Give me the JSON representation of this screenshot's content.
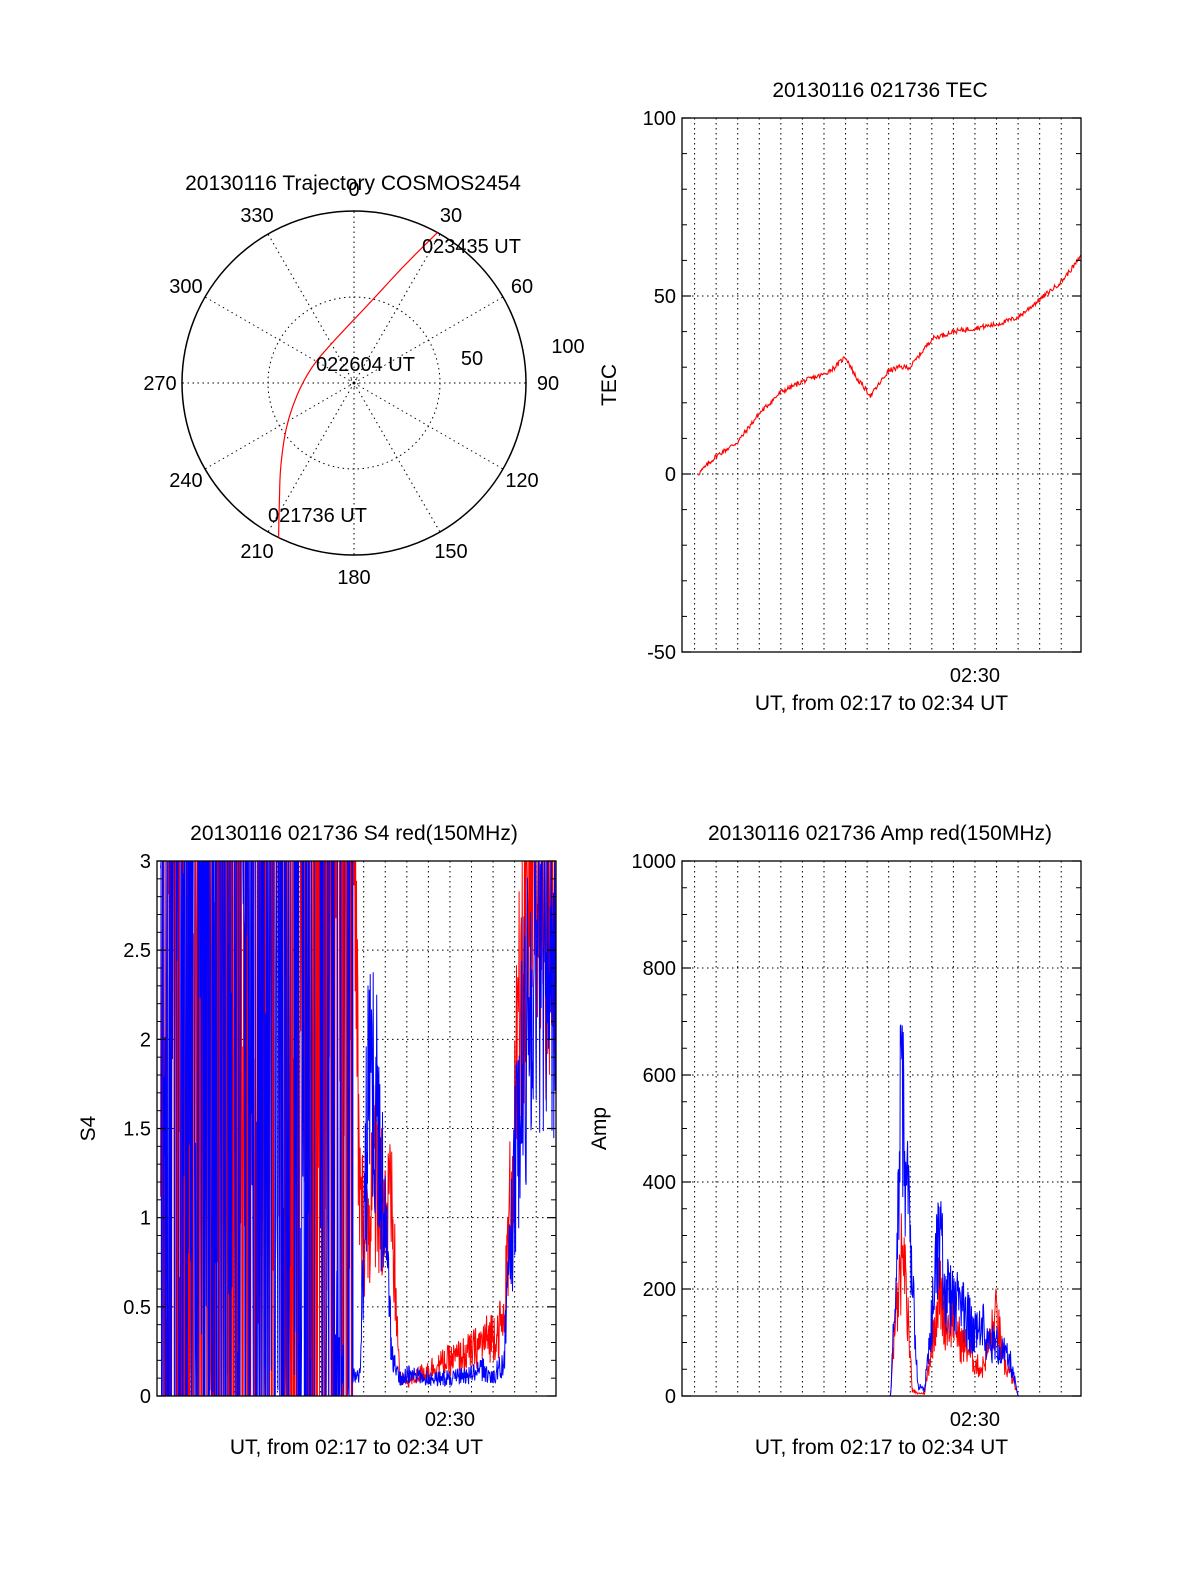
{
  "figure": {
    "polar_title": "20130116 Trajectory COSMOS2454",
    "tec_title": "20130116 021736 TEC",
    "s4_title": "20130116 021736 S4 red(150MHz)",
    "amp_title": "20130116 021736 Amp red(150MHz)"
  },
  "colors": {
    "red": "#ff0000",
    "blue": "#0000ff",
    "axis": "#000000"
  },
  "chart_data": [
    {
      "type": "scatter",
      "subtype": "polar-trajectory",
      "title": "20130116 Trajectory COSMOS2454",
      "azimuth_labels": [
        "0",
        "30",
        "60",
        "90",
        "120",
        "150",
        "180",
        "210",
        "240",
        "270",
        "300",
        "330"
      ],
      "radius_labels": [
        "50",
        "100"
      ],
      "annotations": [
        "023435 UT",
        "022604 UT",
        "021736 UT"
      ],
      "series": [
        {
          "color": "#ff0000",
          "points": [
            {
              "azimuth": 206,
              "zenith": 100
            },
            {
              "azimuth": 212,
              "zenith": 82
            },
            {
              "azimuth": 222,
              "zenith": 64
            },
            {
              "azimuth": 242,
              "zenith": 44
            },
            {
              "azimuth": 284,
              "zenith": 28
            },
            {
              "azimuth": 338,
              "zenith": 28
            },
            {
              "azimuth": 13,
              "zenith": 50
            },
            {
              "azimuth": 23,
              "zenith": 74
            },
            {
              "azimuth": 29,
              "zenith": 100
            }
          ]
        }
      ],
      "grid": true
    },
    {
      "type": "line",
      "title": "20130116 021736 TEC",
      "xlabel": "UT, from 02:17 to 02:34 UT",
      "ylabel": "TEC",
      "x_tick_labels": [
        "02:30"
      ],
      "y_tick_labels": [
        "100",
        "50",
        "0",
        "-50"
      ],
      "ylim": [
        -50,
        100
      ],
      "xlim": [
        "02:16:25",
        "02:34:55"
      ],
      "grid": true,
      "series": [
        {
          "color": "#ff0000",
          "x": [
            "02:17:10",
            "02:18:00",
            "02:19:00",
            "02:20:00",
            "02:21:00",
            "02:22:00",
            "02:23:00",
            "02:23:30",
            "02:24:00",
            "02:24:30",
            "02:25:10",
            "02:26:00",
            "02:26:30",
            "02:27:00",
            "02:28:00",
            "02:29:00",
            "02:30:00",
            "02:31:00",
            "02:32:00",
            "02:33:00",
            "02:34:00",
            "02:34:55"
          ],
          "values": [
            0,
            5,
            9,
            17,
            23,
            26,
            28,
            30,
            33,
            27,
            22,
            29,
            30,
            30,
            38,
            40,
            41,
            42,
            44,
            49,
            54,
            61
          ]
        }
      ]
    },
    {
      "type": "line",
      "title": "20130116 021736 S4 red(150MHz)",
      "xlabel": "UT, from 02:17 to 02:34 UT",
      "ylabel": "S4",
      "x_tick_labels": [
        "02:30"
      ],
      "y_tick_labels": [
        "0",
        "0.5",
        "1",
        "1.5",
        "2",
        "2.5",
        "3"
      ],
      "ylim": [
        0,
        3
      ],
      "xlim": [
        "02:16:25",
        "02:34:55"
      ],
      "grid": true,
      "series": [
        {
          "color": "#ff0000",
          "x": [
            "02:16:35",
            "02:21:40",
            "02:25:35",
            "02:25:50",
            "02:26:10",
            "02:26:30",
            "02:26:55",
            "02:27:20",
            "02:27:40",
            "02:28:00",
            "02:28:20",
            "02:29:00",
            "02:30:00",
            "02:31:00",
            "02:32:00",
            "02:32:30",
            "02:33:00",
            "02:33:30",
            "02:34:00",
            "02:34:55"
          ],
          "values": [
            3.0,
            3.0,
            2.8,
            1.0,
            0.95,
            1.3,
            1.1,
            0.95,
            0.1,
            0.08,
            0.1,
            0.15,
            0.2,
            0.25,
            0.35,
            0.4,
            1.5,
            2.6,
            3.0,
            3.0
          ]
        },
        {
          "color": "#0000ff",
          "x": [
            "02:16:35",
            "02:21:40",
            "02:22:10",
            "02:22:40",
            "02:23:10",
            "02:23:40",
            "02:24:10",
            "02:24:40",
            "02:25:10",
            "02:25:50",
            "02:26:10",
            "02:26:30",
            "02:26:55",
            "02:27:20",
            "02:27:40",
            "02:28:00",
            "02:29:00",
            "02:30:00",
            "02:31:00",
            "02:31:30",
            "02:32:00",
            "02:32:30",
            "02:33:00",
            "02:33:30",
            "02:34:00",
            "02:34:55"
          ],
          "values": [
            3.0,
            3.0,
            2.0,
            1.3,
            1.55,
            1.2,
            1.05,
            0.95,
            0.1,
            0.12,
            1.6,
            1.75,
            1.1,
            0.2,
            0.1,
            0.12,
            0.1,
            0.1,
            0.12,
            0.15,
            0.1,
            0.2,
            1.2,
            2.0,
            2.6,
            2.6
          ]
        }
      ]
    },
    {
      "type": "line",
      "title": "20130116 021736 Amp red(150MHz)",
      "xlabel": "UT, from 02:17 to 02:34 UT",
      "ylabel": "Amp",
      "x_tick_labels": [
        "02:30"
      ],
      "y_tick_labels": [
        "0",
        "200",
        "400",
        "600",
        "800",
        "1000"
      ],
      "ylim": [
        0,
        1000
      ],
      "xlim": [
        "02:16:25",
        "02:34:55"
      ],
      "grid": true,
      "series": [
        {
          "color": "#ff0000",
          "x": [
            "02:17:00",
            "02:26:05",
            "02:26:20",
            "02:26:35",
            "02:26:50",
            "02:27:05",
            "02:27:20",
            "02:27:40",
            "02:28:00",
            "02:28:20",
            "02:28:40",
            "02:29:00",
            "02:29:20",
            "02:29:40",
            "02:30:00",
            "02:30:20",
            "02:30:40",
            "02:31:00",
            "02:31:20",
            "02:31:40",
            "02:32:00",
            "02:34:55"
          ],
          "values": [
            0,
            0,
            150,
            250,
            200,
            10,
            5,
            5,
            100,
            200,
            130,
            150,
            100,
            90,
            60,
            50,
            100,
            150,
            60,
            40,
            0,
            0
          ]
        },
        {
          "color": "#0000ff",
          "x": [
            "02:17:00",
            "02:26:05",
            "02:26:20",
            "02:26:35",
            "02:26:50",
            "02:27:05",
            "02:27:20",
            "02:27:40",
            "02:28:00",
            "02:28:20",
            "02:28:40",
            "02:29:00",
            "02:29:20",
            "02:29:40",
            "02:30:00",
            "02:30:20",
            "02:30:40",
            "02:31:00",
            "02:31:20",
            "02:31:40",
            "02:32:00",
            "02:34:55"
          ],
          "values": [
            0,
            0,
            200,
            600,
            380,
            250,
            20,
            10,
            150,
            300,
            190,
            180,
            170,
            140,
            120,
            130,
            100,
            95,
            80,
            60,
            0,
            0
          ]
        }
      ]
    }
  ]
}
